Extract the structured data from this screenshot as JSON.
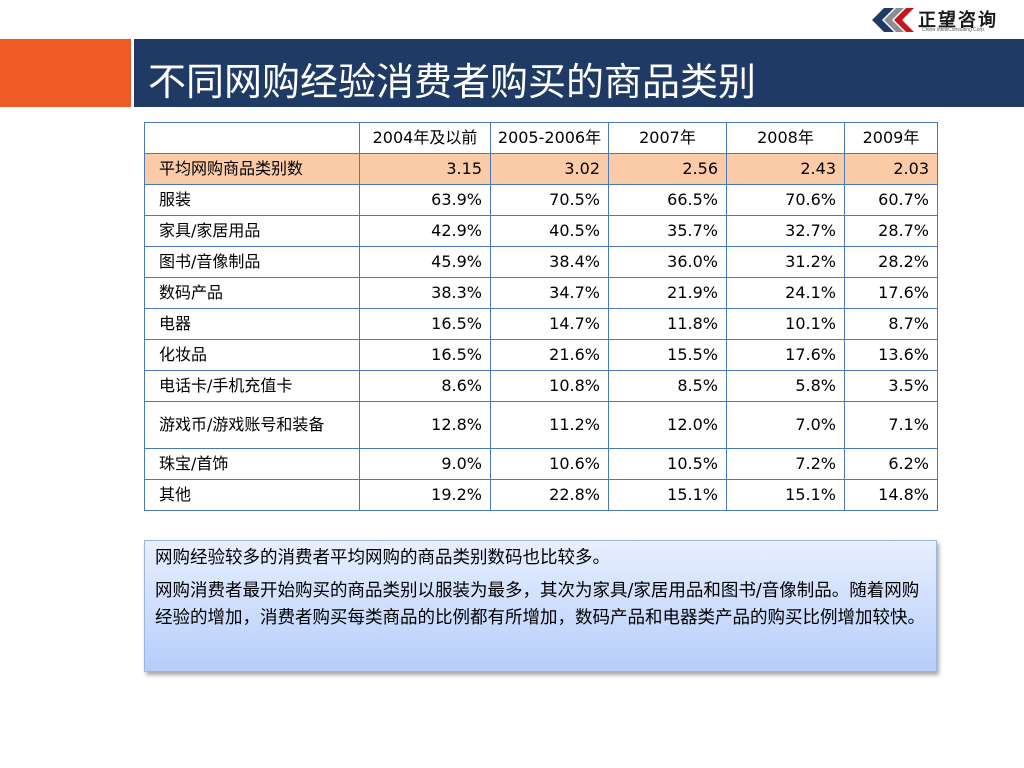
{
  "logo": {
    "name": "正望咨询",
    "subtitle": "China IntelliConsulting Corp."
  },
  "title": "不同网购经验消费者购买的商品类别",
  "table": {
    "headers": [
      "",
      "2004年及以前",
      "2005-2006年",
      "2007年",
      "2008年",
      "2009年"
    ],
    "rows": [
      {
        "label": "平均网购商品类别数",
        "values": [
          "3.15",
          "3.02",
          "2.56",
          "2.43",
          "2.03"
        ]
      },
      {
        "label": "服装",
        "values": [
          "63.9%",
          "70.5%",
          "66.5%",
          "70.6%",
          "60.7%"
        ]
      },
      {
        "label": "家具/家居用品",
        "values": [
          "42.9%",
          "40.5%",
          "35.7%",
          "32.7%",
          "28.7%"
        ]
      },
      {
        "label": "图书/音像制品",
        "values": [
          "45.9%",
          "38.4%",
          "36.0%",
          "31.2%",
          "28.2%"
        ]
      },
      {
        "label": "数码产品",
        "values": [
          "38.3%",
          "34.7%",
          "21.9%",
          "24.1%",
          "17.6%"
        ]
      },
      {
        "label": "电器",
        "values": [
          "16.5%",
          "14.7%",
          "11.8%",
          "10.1%",
          "8.7%"
        ]
      },
      {
        "label": "化妆品",
        "values": [
          "16.5%",
          "21.6%",
          "15.5%",
          "17.6%",
          "13.6%"
        ]
      },
      {
        "label": "电话卡/手机充值卡",
        "values": [
          "8.6%",
          "10.8%",
          "8.5%",
          "5.8%",
          "3.5%"
        ]
      },
      {
        "label": "游戏币/游戏账号和装备",
        "values": [
          "12.8%",
          "11.2%",
          "12.0%",
          "7.0%",
          "7.1%"
        ]
      },
      {
        "label": "珠宝/首饰",
        "values": [
          "9.0%",
          "10.6%",
          "10.5%",
          "7.2%",
          "6.2%"
        ]
      },
      {
        "label": "其他",
        "values": [
          "19.2%",
          "22.8%",
          "15.1%",
          "15.1%",
          "14.8%"
        ]
      }
    ]
  },
  "notes": [
    "网购经验较多的消费者平均网购的商品类别数码也比较多。",
    "网购消费者最开始购买的商品类别以服装为最多，其次为家具/家居用品和图书/音像制品。随着网购经验的增加，消费者购买每类商品的比例都有所增加，数码产品和电器类产品的购买比例增加较快。"
  ],
  "colors": {
    "accent": "#ef5b25",
    "title_bar": "#1f3a64",
    "highlight_row": "#fbcba8",
    "table_border": "#4a78b8"
  },
  "icons": [
    "logo-chevron-icon"
  ]
}
